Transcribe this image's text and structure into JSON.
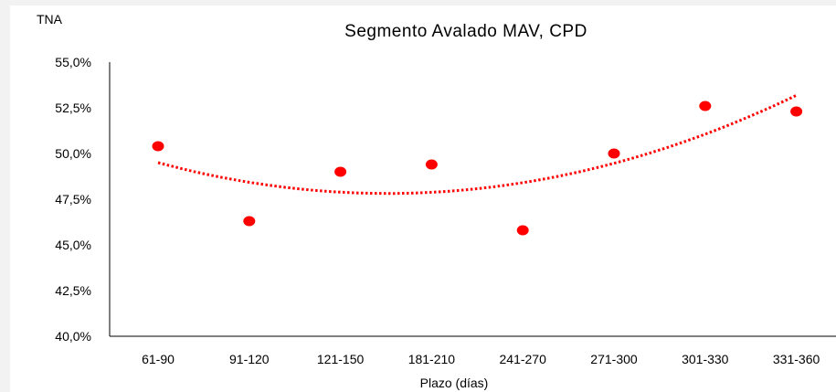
{
  "chart_data": {
    "type": "scatter",
    "title": "Segmento Avalado MAV, CPD",
    "ylabel": "TNA",
    "xlabel": "Plazo (días)",
    "categories": [
      "61-90",
      "91-120",
      "121-150",
      "181-210",
      "241-270",
      "271-300",
      "301-330",
      "331-360"
    ],
    "series": [
      {
        "values": [
          50.4,
          46.3,
          49.0,
          49.4,
          45.8,
          50.0,
          52.6,
          52.3
        ],
        "color": "#ff0000"
      }
    ],
    "trendline": {
      "kind": "polynomial",
      "style": "dotted",
      "color": "#ff0000"
    },
    "y_ticks": [
      "40,0%",
      "42,5%",
      "45,0%",
      "47,5%",
      "50,0%",
      "52,5%",
      "55,0%"
    ],
    "ylim": [
      40,
      55
    ],
    "grid": false,
    "legend": "none"
  }
}
